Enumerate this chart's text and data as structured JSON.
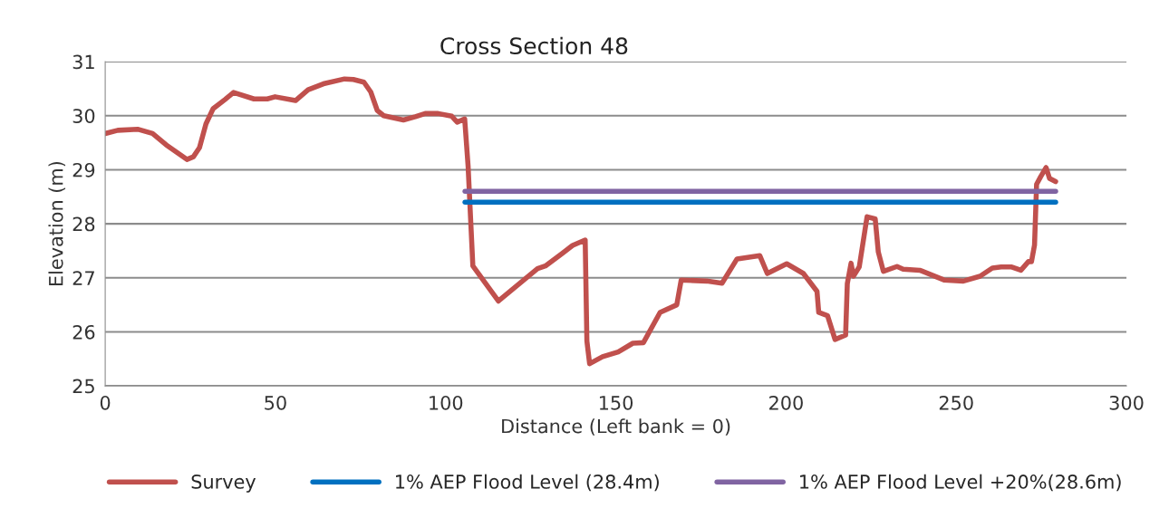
{
  "chart_data": {
    "type": "line",
    "title": "Cross Section 48",
    "xlabel": "Distance (Left bank = 0)",
    "ylabel": "Elevation (m)",
    "xlim": [
      0,
      300
    ],
    "xticks": [
      0,
      50,
      100,
      150,
      200,
      250,
      300
    ],
    "ylim": [
      25,
      31
    ],
    "yticks": [
      25,
      26,
      27,
      28,
      29,
      30,
      31
    ],
    "grid": "y",
    "legend": "bottom",
    "marker": "none",
    "line_style": "solid",
    "series": [
      {
        "name": "Survey",
        "color": "#c0504d",
        "x": [
          0,
          3.7,
          9.5,
          13.9,
          17.9,
          24.0,
          25.9,
          27.7,
          29.6,
          31.7,
          35.2,
          37.7,
          43.7,
          47.6,
          49.9,
          55.9,
          59.6,
          64.1,
          70.3,
          72.9,
          76.0,
          78.0,
          79.9,
          81.8,
          87.6,
          91.1,
          94.0,
          97.8,
          101.8,
          103.4,
          105.6,
          106.6,
          108.0,
          115.5,
          127.0,
          129.3,
          134.2,
          137.3,
          141.0,
          141.5,
          142.3,
          146.1,
          150.7,
          155.0,
          158.1,
          163.0,
          167.9,
          169.2,
          176.7,
          181.2,
          185.6,
          192.3,
          194.5,
          200.2,
          205.1,
          209.1,
          209.6,
          212.2,
          214.4,
          217.5,
          218.0,
          219.1,
          219.8,
          221.5,
          223.8,
          226.2,
          227.1,
          228.6,
          232.6,
          234.4,
          239.3,
          246.4,
          252.1,
          257.0,
          260.6,
          263.2,
          266.3,
          269.0,
          271.2,
          272.1,
          273.0,
          273.6,
          274.8,
          276.4,
          277.4,
          279.2
        ],
        "values": [
          29.67,
          29.73,
          29.75,
          29.67,
          29.46,
          29.19,
          29.24,
          29.41,
          29.85,
          30.13,
          30.3,
          30.43,
          30.31,
          30.31,
          30.35,
          30.28,
          30.48,
          30.59,
          30.68,
          30.67,
          30.62,
          30.44,
          30.1,
          30.0,
          29.92,
          29.98,
          30.04,
          30.04,
          29.99,
          29.88,
          29.94,
          29.07,
          27.22,
          26.57,
          27.17,
          27.22,
          27.45,
          27.6,
          27.7,
          25.83,
          25.41,
          25.54,
          25.63,
          25.79,
          25.8,
          26.36,
          26.5,
          26.96,
          26.94,
          26.9,
          27.35,
          27.41,
          27.08,
          27.26,
          27.08,
          26.75,
          26.36,
          26.3,
          25.86,
          25.94,
          26.89,
          27.27,
          27.03,
          27.2,
          28.13,
          28.09,
          27.48,
          27.12,
          27.21,
          27.16,
          27.14,
          26.96,
          26.94,
          27.03,
          27.18,
          27.2,
          27.2,
          27.14,
          27.3,
          27.3,
          27.61,
          28.73,
          28.87,
          29.04,
          28.84,
          28.78
        ]
      },
      {
        "name": "1% AEP Flood Level (28.4m)",
        "color": "#0070c0",
        "x": [
          105.7,
          279.2
        ],
        "values": [
          28.4,
          28.4
        ]
      },
      {
        "name": "1% AEP Flood Level +20%(28.6m)",
        "color": "#8064a2",
        "x": [
          105.7,
          279.2
        ],
        "values": [
          28.6,
          28.6
        ]
      }
    ]
  }
}
